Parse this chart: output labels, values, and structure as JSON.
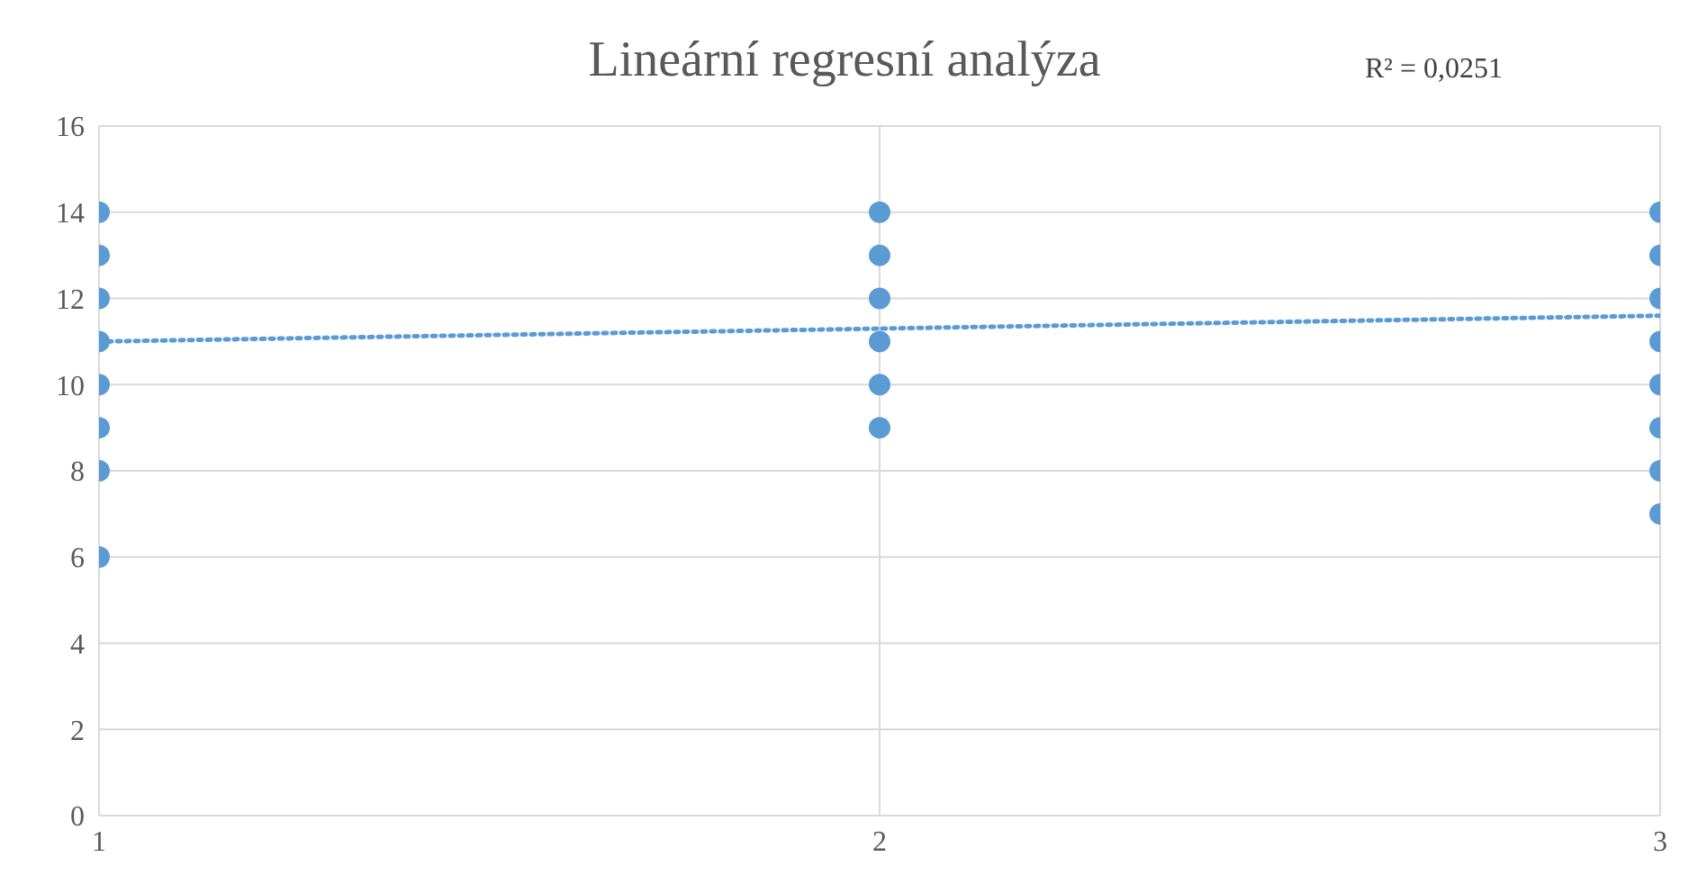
{
  "chart_data": {
    "type": "scatter",
    "title": "Lineární regresní analýza",
    "annotations": [
      "R² = 0,0251"
    ],
    "xlim": [
      1,
      3
    ],
    "xticks": [
      1,
      2,
      3
    ],
    "ylim": [
      0,
      16
    ],
    "yticks": [
      0,
      2,
      4,
      6,
      8,
      10,
      12,
      14,
      16
    ],
    "grid": true,
    "series": [
      {
        "color": "#5b9bd5",
        "marker": "circle",
        "x": [
          1,
          1,
          1,
          1,
          1,
          1,
          1,
          1,
          2,
          2,
          2,
          2,
          2,
          2,
          3,
          3,
          3,
          3,
          3,
          3,
          3,
          3
        ],
        "values": [
          6,
          8,
          9,
          10,
          11,
          12,
          13,
          14,
          9,
          10,
          11,
          12,
          13,
          14,
          7,
          8,
          9,
          10,
          11,
          12,
          13,
          14
        ]
      },
      {
        "type": "line",
        "color": "#5b9bd5",
        "marker": "none",
        "line_style": "dotted",
        "x": [
          1,
          3
        ],
        "values": [
          11,
          11.6
        ]
      }
    ]
  }
}
